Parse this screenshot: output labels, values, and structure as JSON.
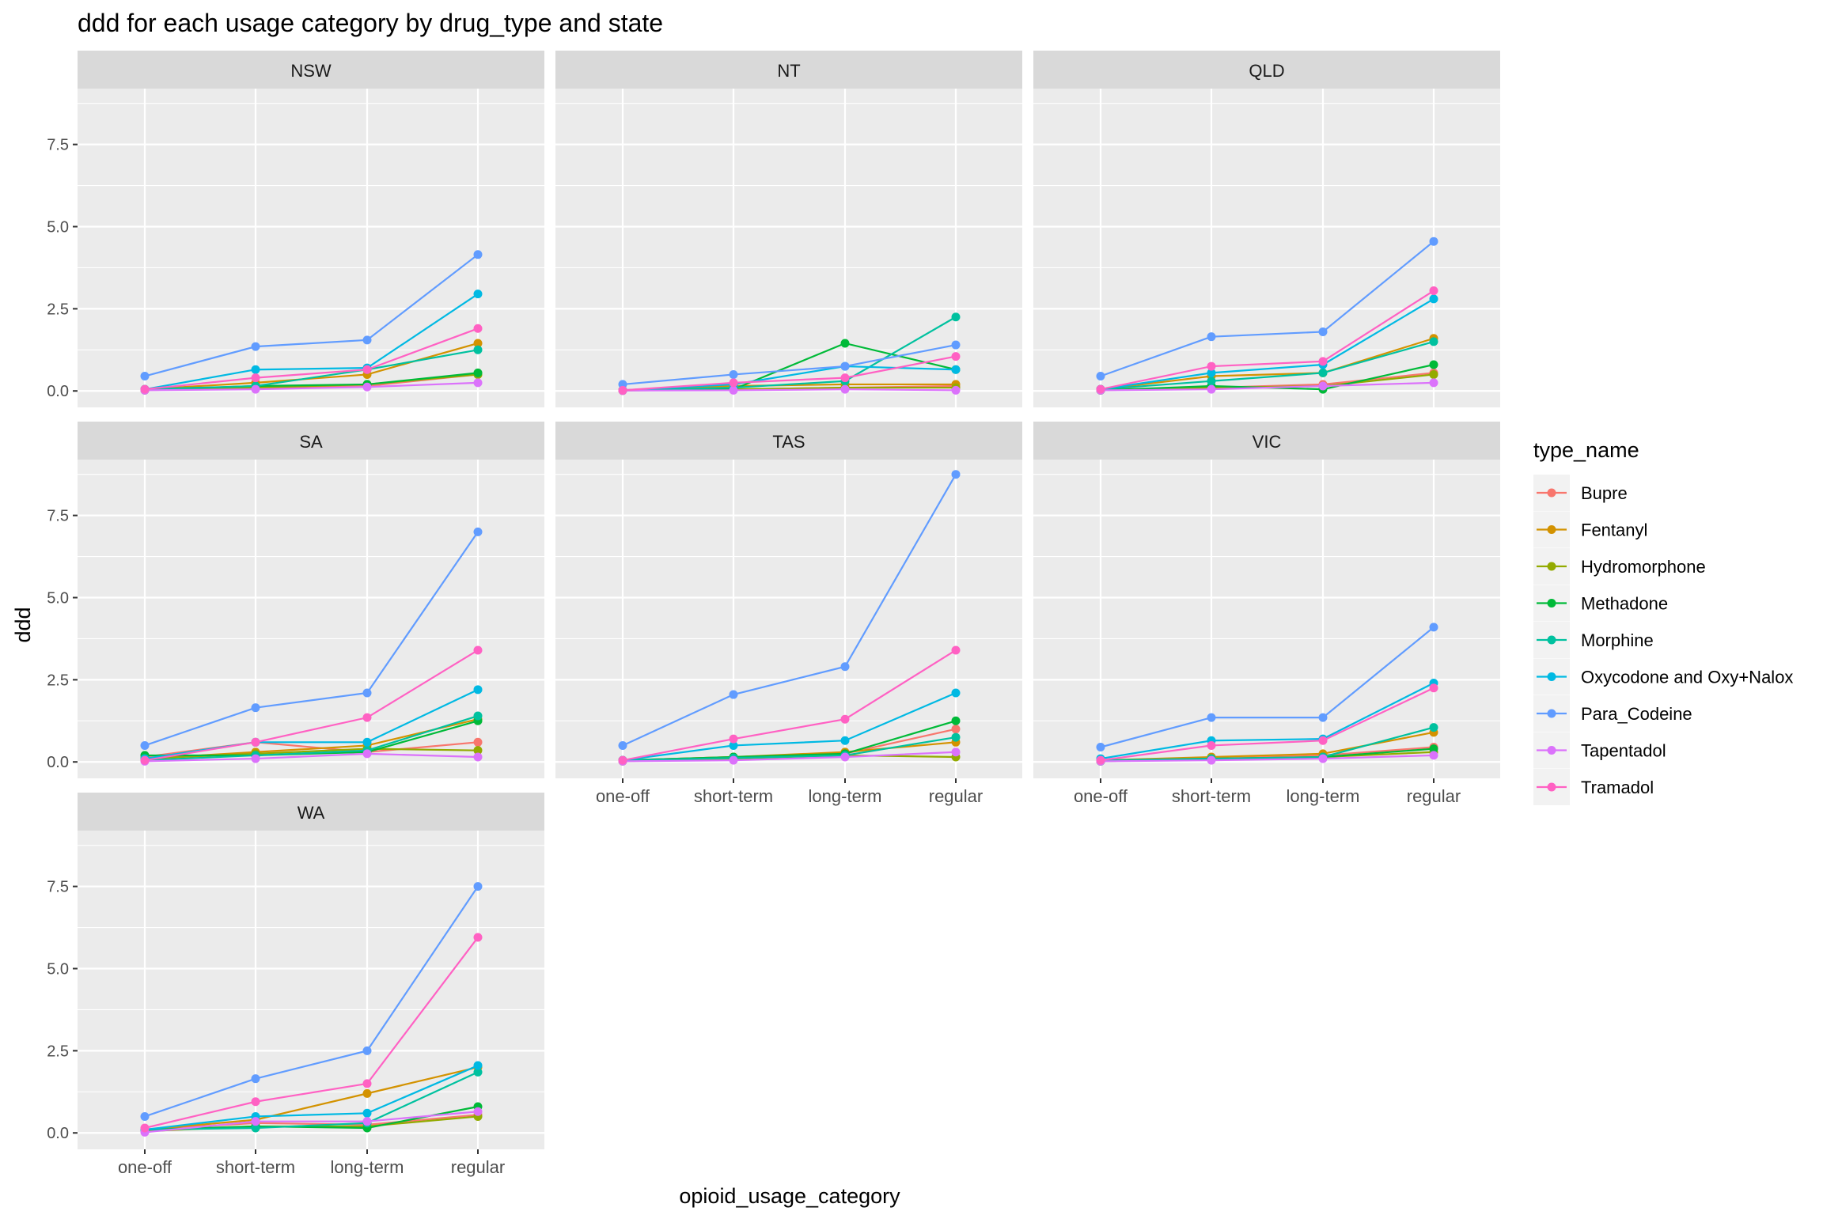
{
  "chart_data": {
    "type": "line",
    "title": "ddd for each usage category by drug_type and state",
    "xlabel": "opioid_usage_category",
    "ylabel": "ddd",
    "ylim": [
      -0.5,
      9.2
    ],
    "yticks": [
      0.0,
      2.5,
      5.0,
      7.5
    ],
    "ytick_labels": [
      "0.0",
      "2.5",
      "5.0",
      "7.5"
    ],
    "categories": [
      "one-off",
      "short-term",
      "long-term",
      "regular"
    ],
    "grid": true,
    "legend": {
      "title": "type_name",
      "position": "right",
      "entries": [
        "Bupre",
        "Fentanyl",
        "Hydromorphone",
        "Methadone",
        "Morphine",
        "Oxycodone and Oxy+Nalox",
        "Para_Codeine",
        "Tapentadol",
        "Tramadol"
      ]
    },
    "series_colors": {
      "Bupre": "#F8766D",
      "Fentanyl": "#D39200",
      "Hydromorphone": "#93AA00",
      "Methadone": "#00BA38",
      "Morphine": "#00C19F",
      "Oxycodone and Oxy+Nalox": "#00B9E3",
      "Para_Codeine": "#619CFF",
      "Tapentadol": "#DB72FB",
      "Tramadol": "#FF61C3"
    },
    "panels": [
      {
        "name": "NSW",
        "series": [
          {
            "name": "Bupre",
            "values": [
              0.05,
              0.08,
              0.15,
              0.5
            ]
          },
          {
            "name": "Fentanyl",
            "values": [
              0.05,
              0.25,
              0.5,
              1.45
            ]
          },
          {
            "name": "Hydromorphone",
            "values": [
              0.02,
              0.1,
              0.2,
              0.5
            ]
          },
          {
            "name": "Methadone",
            "values": [
              0.03,
              0.15,
              0.2,
              0.55
            ]
          },
          {
            "name": "Morphine",
            "values": [
              0.05,
              0.15,
              0.65,
              1.25
            ]
          },
          {
            "name": "Oxycodone and Oxy+Nalox",
            "values": [
              0.05,
              0.65,
              0.7,
              2.95
            ]
          },
          {
            "name": "Para_Codeine",
            "values": [
              0.45,
              1.35,
              1.55,
              4.15
            ]
          },
          {
            "name": "Tapentadol",
            "values": [
              0.02,
              0.05,
              0.12,
              0.25
            ]
          },
          {
            "name": "Tramadol",
            "values": [
              0.05,
              0.4,
              0.65,
              1.9
            ]
          }
        ]
      },
      {
        "name": "NT",
        "series": [
          {
            "name": "Bupre",
            "values": [
              0.02,
              0.05,
              0.1,
              0.15
            ]
          },
          {
            "name": "Fentanyl",
            "values": [
              0.02,
              0.15,
              0.2,
              0.2
            ]
          },
          {
            "name": "Hydromorphone",
            "values": [
              0.01,
              0.05,
              0.1,
              0.1
            ]
          },
          {
            "name": "Methadone",
            "values": [
              0.02,
              0.05,
              1.45,
              0.65
            ]
          },
          {
            "name": "Morphine",
            "values": [
              0.02,
              0.1,
              0.3,
              2.25
            ]
          },
          {
            "name": "Oxycodone and Oxy+Nalox",
            "values": [
              0.02,
              0.2,
              0.75,
              0.65
            ]
          },
          {
            "name": "Para_Codeine",
            "values": [
              0.2,
              0.5,
              0.75,
              1.4
            ]
          },
          {
            "name": "Tapentadol",
            "values": [
              0.01,
              0.02,
              0.05,
              0.02
            ]
          },
          {
            "name": "Tramadol",
            "values": [
              0.02,
              0.25,
              0.4,
              1.05
            ]
          }
        ]
      },
      {
        "name": "QLD",
        "series": [
          {
            "name": "Bupre",
            "values": [
              0.05,
              0.1,
              0.2,
              0.55
            ]
          },
          {
            "name": "Fentanyl",
            "values": [
              0.05,
              0.45,
              0.55,
              1.6
            ]
          },
          {
            "name": "Hydromorphone",
            "values": [
              0.02,
              0.1,
              0.15,
              0.5
            ]
          },
          {
            "name": "Methadone",
            "values": [
              0.02,
              0.15,
              0.05,
              0.8
            ]
          },
          {
            "name": "Morphine",
            "values": [
              0.05,
              0.3,
              0.55,
              1.5
            ]
          },
          {
            "name": "Oxycodone and Oxy+Nalox",
            "values": [
              0.05,
              0.55,
              0.8,
              2.8
            ]
          },
          {
            "name": "Para_Codeine",
            "values": [
              0.45,
              1.65,
              1.8,
              4.55
            ]
          },
          {
            "name": "Tapentadol",
            "values": [
              0.02,
              0.05,
              0.15,
              0.25
            ]
          },
          {
            "name": "Tramadol",
            "values": [
              0.05,
              0.75,
              0.9,
              3.05
            ]
          }
        ]
      },
      {
        "name": "SA",
        "series": [
          {
            "name": "Bupre",
            "values": [
              0.15,
              0.6,
              0.3,
              0.6
            ]
          },
          {
            "name": "Fentanyl",
            "values": [
              0.1,
              0.3,
              0.5,
              1.3
            ]
          },
          {
            "name": "Hydromorphone",
            "values": [
              0.1,
              0.25,
              0.4,
              0.35
            ]
          },
          {
            "name": "Methadone",
            "values": [
              0.2,
              0.2,
              0.3,
              1.25
            ]
          },
          {
            "name": "Morphine",
            "values": [
              0.05,
              0.2,
              0.35,
              1.4
            ]
          },
          {
            "name": "Oxycodone and Oxy+Nalox",
            "values": [
              0.1,
              0.6,
              0.6,
              2.2
            ]
          },
          {
            "name": "Para_Codeine",
            "values": [
              0.5,
              1.65,
              2.1,
              7.0
            ]
          },
          {
            "name": "Tapentadol",
            "values": [
              0.02,
              0.1,
              0.25,
              0.15
            ]
          },
          {
            "name": "Tramadol",
            "values": [
              0.05,
              0.6,
              1.35,
              3.4
            ]
          }
        ]
      },
      {
        "name": "TAS",
        "series": [
          {
            "name": "Bupre",
            "values": [
              0.05,
              0.15,
              0.25,
              1.0
            ]
          },
          {
            "name": "Fentanyl",
            "values": [
              0.05,
              0.15,
              0.3,
              0.6
            ]
          },
          {
            "name": "Hydromorphone",
            "values": [
              0.02,
              0.1,
              0.2,
              0.15
            ]
          },
          {
            "name": "Methadone",
            "values": [
              0.05,
              0.15,
              0.25,
              1.25
            ]
          },
          {
            "name": "Morphine",
            "values": [
              0.05,
              0.12,
              0.2,
              0.75
            ]
          },
          {
            "name": "Oxycodone and Oxy+Nalox",
            "values": [
              0.05,
              0.5,
              0.65,
              2.1
            ]
          },
          {
            "name": "Para_Codeine",
            "values": [
              0.5,
              2.05,
              2.9,
              8.75
            ]
          },
          {
            "name": "Tapentadol",
            "values": [
              0.02,
              0.05,
              0.15,
              0.3
            ]
          },
          {
            "name": "Tramadol",
            "values": [
              0.05,
              0.7,
              1.3,
              3.4
            ]
          }
        ]
      },
      {
        "name": "VIC",
        "series": [
          {
            "name": "Bupre",
            "values": [
              0.05,
              0.1,
              0.2,
              0.45
            ]
          },
          {
            "name": "Fentanyl",
            "values": [
              0.05,
              0.15,
              0.25,
              0.9
            ]
          },
          {
            "name": "Hydromorphone",
            "values": [
              0.02,
              0.1,
              0.15,
              0.3
            ]
          },
          {
            "name": "Methadone",
            "values": [
              0.02,
              0.1,
              0.15,
              0.4
            ]
          },
          {
            "name": "Morphine",
            "values": [
              0.05,
              0.1,
              0.15,
              1.05
            ]
          },
          {
            "name": "Oxycodone and Oxy+Nalox",
            "values": [
              0.1,
              0.65,
              0.7,
              2.4
            ]
          },
          {
            "name": "Para_Codeine",
            "values": [
              0.45,
              1.35,
              1.35,
              4.1
            ]
          },
          {
            "name": "Tapentadol",
            "values": [
              0.02,
              0.05,
              0.1,
              0.2
            ]
          },
          {
            "name": "Tramadol",
            "values": [
              0.05,
              0.5,
              0.65,
              2.25
            ]
          }
        ]
      },
      {
        "name": "WA",
        "series": [
          {
            "name": "Bupre",
            "values": [
              0.1,
              0.3,
              0.25,
              0.55
            ]
          },
          {
            "name": "Fentanyl",
            "values": [
              0.1,
              0.4,
              1.2,
              2.0
            ]
          },
          {
            "name": "Hydromorphone",
            "values": [
              0.05,
              0.2,
              0.2,
              0.5
            ]
          },
          {
            "name": "Methadone",
            "values": [
              0.1,
              0.2,
              0.15,
              0.8
            ]
          },
          {
            "name": "Morphine",
            "values": [
              0.1,
              0.15,
              0.3,
              1.85
            ]
          },
          {
            "name": "Oxycodone and Oxy+Nalox",
            "values": [
              0.1,
              0.5,
              0.6,
              2.05
            ]
          },
          {
            "name": "Para_Codeine",
            "values": [
              0.5,
              1.65,
              2.5,
              7.5
            ]
          },
          {
            "name": "Tapentadol",
            "values": [
              0.02,
              0.35,
              0.35,
              0.65
            ]
          },
          {
            "name": "Tramadol",
            "values": [
              0.15,
              0.95,
              1.5,
              5.95
            ]
          }
        ]
      }
    ]
  }
}
